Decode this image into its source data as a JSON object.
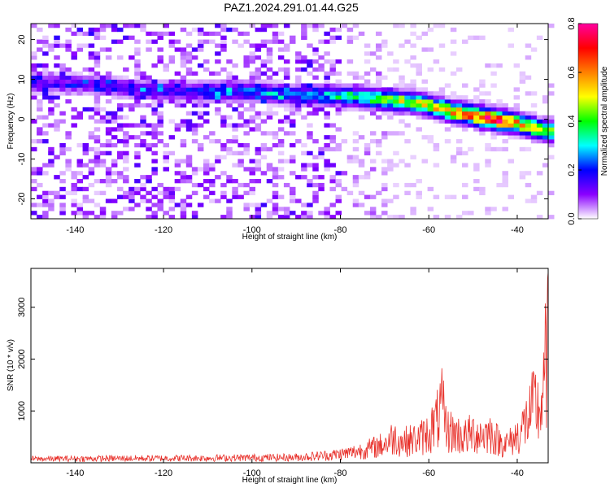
{
  "title": "PAZ1.2024.291.01.44.G25",
  "chart_data": [
    {
      "type": "heatmap",
      "xlabel": "Height of straight line (km)",
      "ylabel": "Frequency (Hz)",
      "xlim": [
        -150,
        -33
      ],
      "ylim": [
        -25,
        24
      ],
      "xticks": [
        -140,
        -120,
        -100,
        -80,
        -60,
        -40
      ],
      "yticks": [
        -20,
        -10,
        0,
        10,
        20
      ],
      "colorbar": {
        "label": "Normalized spectral amplitude",
        "range": [
          0,
          0.8
        ],
        "ticks": [
          "0.0",
          "0.2",
          "0.4",
          "0.6",
          "0.8"
        ],
        "colors": [
          "#ffffff",
          "#8a00ff",
          "#0000ff",
          "#00ffff",
          "#00ff00",
          "#ffff00",
          "#ff8000",
          "#ff0000",
          "#ff00a0"
        ]
      },
      "ridge": {
        "x": [
          -150,
          -140,
          -130,
          -120,
          -110,
          -100,
          -90,
          -85,
          -80,
          -75,
          -70,
          -65,
          -60,
          -55,
          -50,
          -45,
          -40,
          -35,
          -33
        ],
        "frequency": [
          9,
          9,
          8,
          7,
          7,
          7,
          6,
          6,
          6,
          5.5,
          5,
          4.5,
          3.5,
          2,
          1,
          0,
          -1,
          -2.5,
          -3
        ],
        "amplitude": [
          0.12,
          0.12,
          0.14,
          0.15,
          0.18,
          0.2,
          0.22,
          0.24,
          0.3,
          0.36,
          0.42,
          0.45,
          0.5,
          0.55,
          0.62,
          0.78,
          0.55,
          0.45,
          0.4
        ]
      }
    },
    {
      "type": "line",
      "xlabel": "Height of straight line (km)",
      "ylabel": "SNR (10 * v/v)",
      "xlim": [
        -150,
        -33
      ],
      "ylim": [
        0,
        3750
      ],
      "xticks": [
        -140,
        -120,
        -100,
        -80,
        -60,
        -40
      ],
      "yticks": [
        1000,
        2000,
        3000
      ],
      "color": "#e8302a",
      "envelope": {
        "x": [
          -150,
          -110,
          -90,
          -82,
          -78,
          -74,
          -70,
          -68,
          -66,
          -64,
          -62,
          -60,
          -58,
          -57,
          -56,
          -54,
          -52,
          -50,
          -48,
          -46,
          -44,
          -42,
          -40,
          -38,
          -36,
          -35,
          -34,
          -33.5,
          -33
        ],
        "y": [
          130,
          160,
          180,
          260,
          330,
          450,
          620,
          850,
          700,
          750,
          820,
          1000,
          1450,
          1850,
          1100,
          980,
          850,
          1000,
          950,
          1000,
          700,
          650,
          900,
          1350,
          1950,
          1700,
          2300,
          3500,
          3750
        ]
      }
    }
  ]
}
